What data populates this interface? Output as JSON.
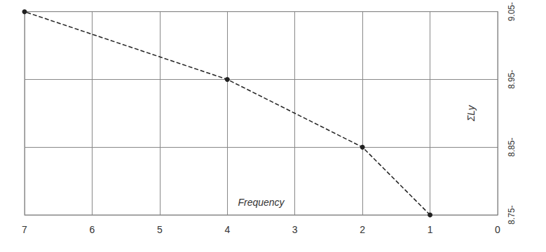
{
  "chart_data": {
    "type": "line",
    "orientation": "horizontal",
    "x_label": "Frequency",
    "y_label": "ΣLy",
    "categories": [
      "8.75-",
      "8.85-",
      "8.95-",
      "9.05-"
    ],
    "values": [
      1,
      2,
      4,
      7
    ],
    "xlim": [
      0,
      7
    ],
    "xticks": [
      0,
      1,
      2,
      3,
      4,
      5,
      6,
      7
    ],
    "color": "#222222",
    "marker": "circle",
    "line_style": "dashed",
    "grid": true
  }
}
